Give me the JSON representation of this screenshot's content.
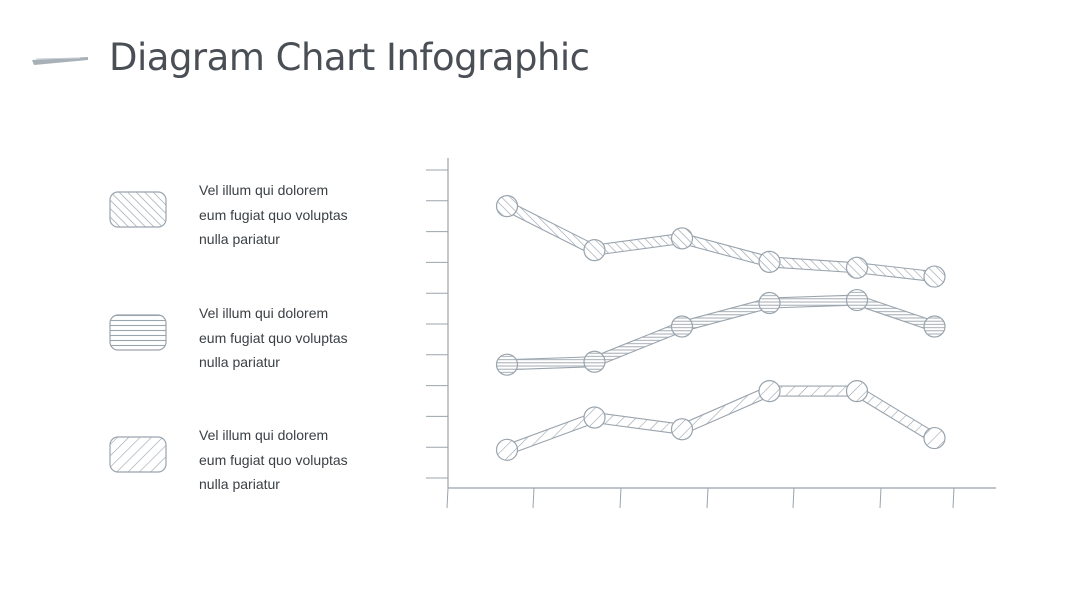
{
  "title": "Diagram Chart Infographic",
  "colors": {
    "stroke": "#9aa4ad",
    "title": "#4a4f55",
    "text": "#3a3f44"
  },
  "legend": [
    {
      "lines": [
        "Vel illum qui dolorem",
        "eum fugiat quo voluptas",
        "nulla pariatur"
      ],
      "pattern": "diagonal-hatch"
    },
    {
      "lines": [
        "Vel illum qui dolorem",
        "eum fugiat quo voluptas",
        "nulla pariatur"
      ],
      "pattern": "horizontal-lines"
    },
    {
      "lines": [
        "Vel illum qui dolorem",
        "eum fugiat quo voluptas",
        "nulla pariatur"
      ],
      "pattern": "back-diagonal-hatch"
    }
  ],
  "chart_data": {
    "type": "line",
    "x": [
      1,
      2,
      3,
      4,
      5,
      6
    ],
    "ylim": [
      0,
      11
    ],
    "y_ticks": 11,
    "x_ticks": 7,
    "series": [
      {
        "values": [
          9.6,
          8.1,
          8.5,
          7.7,
          7.5,
          7.2
        ],
        "pattern": "diagonal-hatch"
      },
      {
        "values": [
          4.2,
          4.3,
          5.5,
          6.3,
          6.4,
          5.5
        ],
        "pattern": "horizontal-lines"
      },
      {
        "values": [
          1.3,
          2.4,
          2.0,
          3.3,
          3.3,
          1.7
        ],
        "pattern": "back-diagonal-hatch"
      }
    ]
  }
}
